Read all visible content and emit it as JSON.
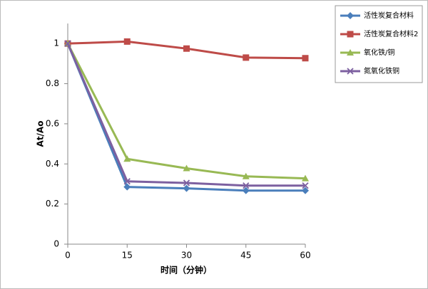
{
  "chart_data": {
    "type": "line",
    "x_label": "时间（分钟）",
    "y_label": "At/Ao",
    "x": [
      0,
      15,
      30,
      45,
      60
    ],
    "xlim": [
      0,
      60
    ],
    "xticks": [
      0,
      15,
      30,
      45,
      60
    ],
    "ylim": [
      0,
      1.1
    ],
    "yticks": [
      0,
      0.2,
      0.4,
      0.6,
      0.8,
      1
    ],
    "legend": "right",
    "series": [
      {
        "name": "活性炭复合材料",
        "color": "#4a7ebb",
        "marker": "diamond",
        "values": [
          1,
          0.285,
          0.278,
          0.267,
          0.267
        ]
      },
      {
        "name": "活性炭复合材料2",
        "color": "#be4b48",
        "marker": "square",
        "values": [
          1,
          1.01,
          0.975,
          0.93,
          0.927
        ]
      },
      {
        "name": "氧化铁/铜",
        "color": "#98b954",
        "marker": "triangle",
        "values": [
          1,
          0.425,
          0.378,
          0.338,
          0.328
        ]
      },
      {
        "name": "氮氧化铁铜",
        "color": "#7d60a0",
        "marker": "x",
        "values": [
          1,
          0.313,
          0.305,
          0.292,
          0.292
        ]
      }
    ]
  }
}
